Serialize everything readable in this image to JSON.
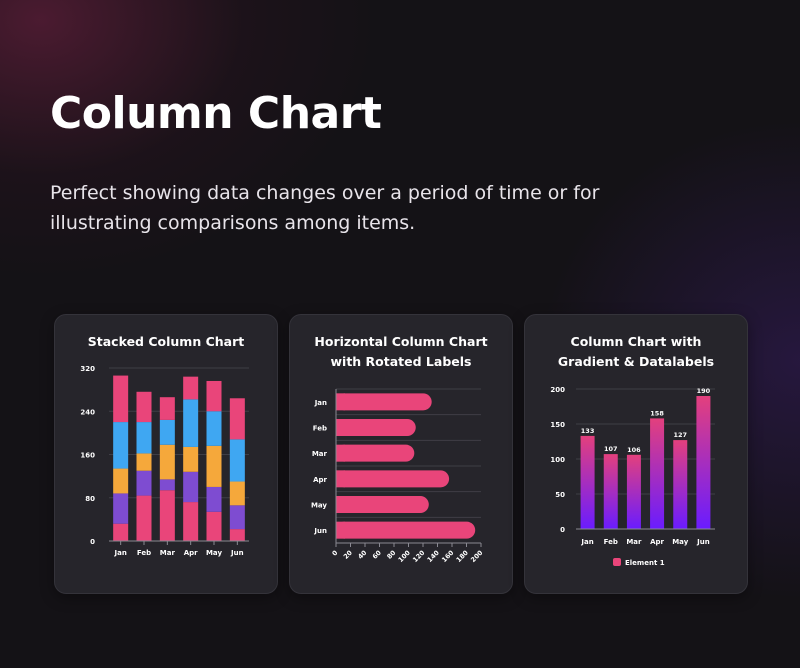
{
  "page": {
    "title": "Column Chart",
    "description": "Perfect showing data changes over a period of time or for illustrating comparisons among items."
  },
  "colors": {
    "pink": "#e9457a",
    "purple": "#7e4cd1",
    "orange": "#f5a83b",
    "blue": "#3fa7f2",
    "gradient_top": "#e3407d",
    "gradient_bottom": "#6a1cff",
    "card_bg": "#26252b"
  },
  "chart_data": [
    {
      "type": "bar",
      "stacked": true,
      "title": "Stacked Column Chart",
      "categories": [
        "Jan",
        "Feb",
        "Mar",
        "Apr",
        "May",
        "Jun"
      ],
      "series": [
        {
          "color": "#e9457a",
          "values": [
            32,
            84,
            94,
            72,
            54,
            22
          ]
        },
        {
          "color": "#7e4cd1",
          "values": [
            56,
            46,
            20,
            56,
            46,
            44
          ]
        },
        {
          "color": "#f5a83b",
          "values": [
            46,
            32,
            64,
            46,
            76,
            44
          ]
        },
        {
          "color": "#3fa7f2",
          "values": [
            86,
            58,
            46,
            88,
            64,
            78
          ]
        },
        {
          "color": "#e9457a",
          "values": [
            86,
            56,
            42,
            42,
            56,
            76
          ]
        }
      ],
      "ylim": [
        0,
        320
      ],
      "yticks": [
        "0",
        "80",
        "160",
        "240",
        "320"
      ],
      "grid": true,
      "legend": "none"
    },
    {
      "type": "bar",
      "orientation": "horizontal",
      "title": "Horizontal Column Chart with Rotated Labels",
      "categories": [
        "Jan",
        "Feb",
        "Mar",
        "Apr",
        "May",
        "Jun"
      ],
      "values": [
        132,
        110,
        108,
        156,
        128,
        192
      ],
      "xlim": [
        0,
        200
      ],
      "xticks": [
        "0",
        "20",
        "40",
        "60",
        "80",
        "100",
        "120",
        "140",
        "160",
        "180",
        "200"
      ],
      "grid": true,
      "legend": "none"
    },
    {
      "type": "bar",
      "title": "Column Chart with Gradient & Datalabels",
      "categories": [
        "Jan",
        "Feb",
        "Mar",
        "Apr",
        "May",
        "Jun"
      ],
      "series": [
        {
          "name": "Element 1",
          "values": [
            133,
            107,
            106,
            158,
            127,
            190
          ]
        }
      ],
      "data_labels": [
        "133",
        "107",
        "106",
        "158",
        "127",
        "190"
      ],
      "ylim": [
        0,
        200
      ],
      "yticks": [
        "0",
        "50",
        "100",
        "150",
        "200"
      ],
      "grid": true,
      "legend": "bottom-center"
    }
  ]
}
